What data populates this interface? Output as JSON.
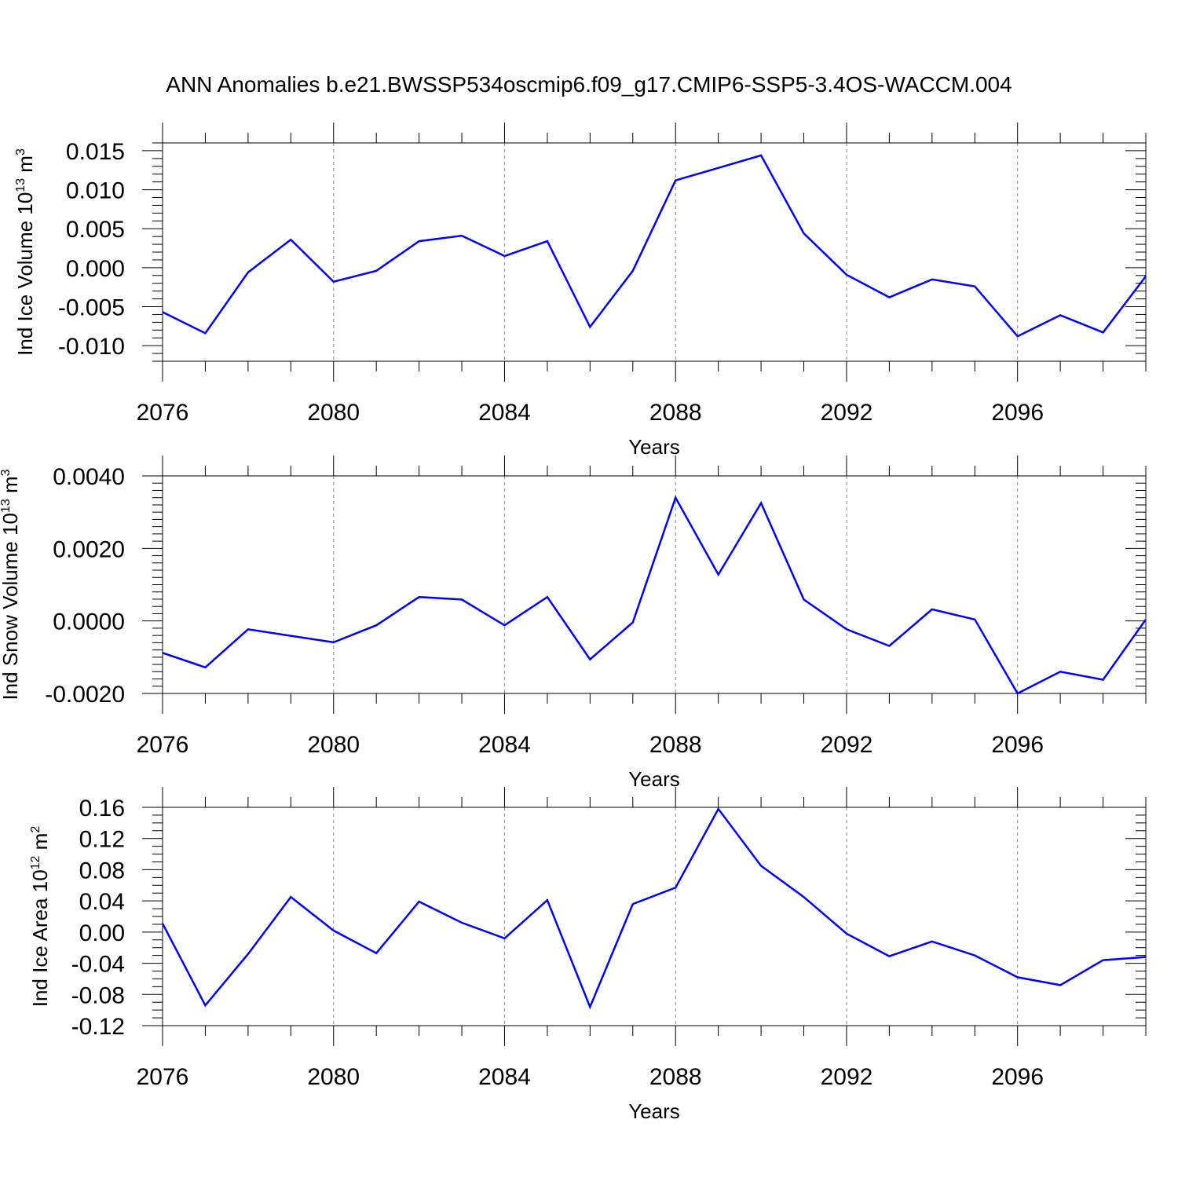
{
  "title": "ANN Anomalies b.e21.BWSSP534oscmip6.f09_g17.CMIP6-SSP5-3.4OS-WACCM.004",
  "colors": {
    "line": "#0000ff",
    "axis": "#000000",
    "grid": "#888888"
  },
  "chart_data": [
    {
      "type": "line",
      "xlabel": "Years",
      "ylabel": "Ind Ice Volume 10",
      "ylabel_exp": "13",
      "ylabel_unit": " m",
      "ylabel_unit_exp": "3",
      "xlim": [
        2076,
        2099
      ],
      "ylim": [
        -0.012,
        0.016
      ],
      "xticks": [
        2076,
        2080,
        2084,
        2088,
        2092,
        2096
      ],
      "xtick_labels": [
        "2076",
        "2080",
        "2084",
        "2088",
        "2092",
        "2096"
      ],
      "yticks": [
        0.015,
        0.01,
        0.005,
        0.0,
        -0.005,
        -0.01
      ],
      "ytick_labels": [
        "0.015",
        "0.010",
        "0.005",
        "0.000",
        "-0.005",
        "-0.010"
      ],
      "grid": "dashed vertical at major x ticks",
      "series": [
        {
          "x": [
            2076,
            2077,
            2078,
            2079,
            2080,
            2081,
            2082,
            2083,
            2084,
            2085,
            2086,
            2087,
            2088,
            2089,
            2090,
            2091,
            2092,
            2093,
            2094,
            2095,
            2096,
            2097,
            2098,
            2099
          ],
          "values": [
            -0.0057,
            -0.0084,
            -0.0006,
            0.0036,
            -0.0018,
            -0.0004,
            0.0034,
            0.0041,
            0.0015,
            0.0034,
            -0.0076,
            -0.0004,
            0.0112,
            0.0128,
            0.0144,
            0.0044,
            -0.0009,
            -0.0038,
            -0.0015,
            -0.0024,
            -0.0088,
            -0.0061,
            -0.0083,
            -0.0011
          ]
        }
      ]
    },
    {
      "type": "line",
      "xlabel": "Years",
      "ylabel": "Ind Snow Volume 10",
      "ylabel_exp": "13",
      "ylabel_unit": " m",
      "ylabel_unit_exp": "3",
      "xlim": [
        2076,
        2099
      ],
      "ylim": [
        -0.002,
        0.004
      ],
      "xticks": [
        2076,
        2080,
        2084,
        2088,
        2092,
        2096
      ],
      "xtick_labels": [
        "2076",
        "2080",
        "2084",
        "2088",
        "2092",
        "2096"
      ],
      "yticks": [
        0.004,
        0.002,
        0.0,
        -0.002
      ],
      "ytick_labels": [
        "0.0040",
        "0.0020",
        "0.0000",
        "-0.0020"
      ],
      "grid": "dashed vertical at major x ticks",
      "series": [
        {
          "x": [
            2076,
            2077,
            2078,
            2079,
            2080,
            2081,
            2082,
            2083,
            2084,
            2085,
            2086,
            2087,
            2088,
            2089,
            2090,
            2091,
            2092,
            2093,
            2094,
            2095,
            2096,
            2097,
            2098,
            2099
          ],
          "values": [
            -0.00088,
            -0.00128,
            -0.00023,
            -0.00041,
            -0.00059,
            -0.00012,
            0.00066,
            0.00059,
            -0.00012,
            0.00066,
            -0.00106,
            -4e-05,
            0.0034,
            0.00128,
            0.00325,
            0.00059,
            -0.00023,
            -0.00069,
            0.00032,
            4e-05,
            -0.002,
            -0.0014,
            -0.00162,
            4e-05
          ]
        }
      ]
    },
    {
      "type": "line",
      "xlabel": "Years",
      "ylabel": "Ind Ice Area 10",
      "ylabel_exp": "12",
      "ylabel_unit": " m",
      "ylabel_unit_exp": "2",
      "xlim": [
        2076,
        2099
      ],
      "ylim": [
        -0.12,
        0.16
      ],
      "xticks": [
        2076,
        2080,
        2084,
        2088,
        2092,
        2096
      ],
      "xtick_labels": [
        "2076",
        "2080",
        "2084",
        "2088",
        "2092",
        "2096"
      ],
      "yticks": [
        0.16,
        0.12,
        0.08,
        0.04,
        0.0,
        -0.04,
        -0.08,
        -0.12
      ],
      "ytick_labels": [
        "0.16",
        "0.12",
        "0.08",
        "0.04",
        "0.00",
        "-0.04",
        "-0.08",
        "-0.12"
      ],
      "grid": "dashed vertical at major x ticks",
      "series": [
        {
          "x": [
            2076,
            2077,
            2078,
            2079,
            2080,
            2081,
            2082,
            2083,
            2084,
            2085,
            2086,
            2087,
            2088,
            2089,
            2090,
            2091,
            2092,
            2093,
            2094,
            2095,
            2096,
            2097,
            2098,
            2099
          ],
          "values": [
            0.011,
            -0.094,
            -0.028,
            0.045,
            0.002,
            -0.027,
            0.039,
            0.012,
            -0.008,
            0.041,
            -0.096,
            0.036,
            0.057,
            0.158,
            0.085,
            0.045,
            -0.002,
            -0.031,
            -0.012,
            -0.03,
            -0.058,
            -0.068,
            -0.036,
            -0.032
          ]
        }
      ]
    }
  ]
}
